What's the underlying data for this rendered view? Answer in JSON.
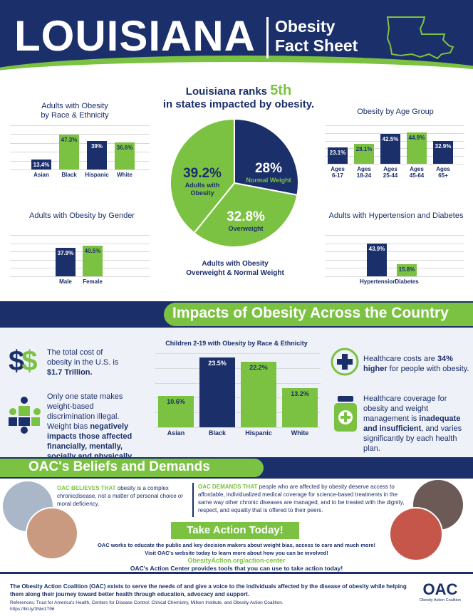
{
  "header": {
    "title": "LOUISIANA",
    "subtitle_line1": "Obesity",
    "subtitle_line2": "Fact Sheet"
  },
  "rank": {
    "prefix": "Louisiana ranks",
    "rank": "5th",
    "suffix": "in states impacted by obesity."
  },
  "race_chart": {
    "title_line1": "Adults with Obesity",
    "title_line2": "by Race & Ethnicity"
  },
  "age_chart": {
    "title": "Obesity by Age Group"
  },
  "gender_chart": {
    "title": "Adults with Obesity by Gender"
  },
  "hypertension_chart": {
    "title": "Adults with Hypertension and Diabetes"
  },
  "pie": {
    "slice_obesity_value": "39.2%",
    "slice_obesity_label_1": "Adults with",
    "slice_obesity_label_2": "Obesity",
    "slice_normal_value": "28%",
    "slice_normal_label": "Normal Weight",
    "slice_over_value": "32.8%",
    "slice_over_label": "Overweight",
    "caption_1": "Adults with Obesity",
    "caption_2": "Overweight & Normal Weight"
  },
  "chart_data": [
    {
      "type": "bar",
      "title": "Adults with Obesity by Race & Ethnicity",
      "categories": [
        "Asian",
        "Black",
        "Hispanic",
        "White"
      ],
      "values": [
        13.4,
        47.3,
        39,
        36.6
      ],
      "value_labels": [
        "13.4%",
        "47.3%",
        "39%",
        "36.6%"
      ],
      "colors": [
        "#1b2f6b",
        "#7cc242",
        "#1b2f6b",
        "#7cc242"
      ],
      "ylim": [
        0,
        60
      ]
    },
    {
      "type": "bar",
      "title": "Obesity by Age Group",
      "categories": [
        "Ages 6-17",
        "Ages 18-24",
        "Ages 25-44",
        "Ages 45-64",
        "Ages 65+"
      ],
      "values": [
        23.1,
        28.1,
        42.5,
        44.9,
        32.9
      ],
      "value_labels": [
        "23.1%",
        "28.1%",
        "42.5%",
        "44.9%",
        "32.9%"
      ],
      "colors": [
        "#1b2f6b",
        "#7cc242",
        "#1b2f6b",
        "#7cc242",
        "#1b2f6b"
      ],
      "ylim": [
        0,
        55
      ]
    },
    {
      "type": "pie",
      "title": "Adults with Obesity Overweight & Normal Weight",
      "categories": [
        "Normal Weight",
        "Overweight",
        "Adults with Obesity"
      ],
      "values": [
        28,
        32.8,
        39.2
      ],
      "colors": [
        "#1b2f6b",
        "#7cc242",
        "#7cc242"
      ]
    },
    {
      "type": "bar",
      "title": "Adults with Obesity by Gender",
      "categories": [
        "Male",
        "Female"
      ],
      "values": [
        37.9,
        40.5
      ],
      "value_labels": [
        "37.9%",
        "40.5%"
      ],
      "colors": [
        "#1b2f6b",
        "#7cc242"
      ],
      "ylim": [
        0,
        55
      ]
    },
    {
      "type": "bar",
      "title": "Adults with Hypertension and Diabetes",
      "categories": [
        "Hypertension",
        "Diabetes"
      ],
      "values": [
        43.9,
        15.8
      ],
      "value_labels": [
        "43.9%",
        "15.8%"
      ],
      "colors": [
        "#1b2f6b",
        "#7cc242"
      ],
      "ylim": [
        0,
        55
      ]
    },
    {
      "type": "bar",
      "title": "Children 2-19 with Obesity by Race & Ethnicity",
      "categories": [
        "Asian",
        "Black",
        "Hispanic",
        "White"
      ],
      "values": [
        10.6,
        23.5,
        22.2,
        13.2
      ],
      "value_labels": [
        "10.6%",
        "23.5%",
        "22.2%",
        "13.2%"
      ],
      "colors": [
        "#7cc242",
        "#1b2f6b",
        "#7cc242",
        "#7cc242"
      ],
      "ylim": [
        0,
        25
      ]
    }
  ],
  "impacts": {
    "band_title": "Impacts of Obesity Across the Country",
    "children_chart_title": "Children 2-19 with Obesity by Race & Ethnicity",
    "cost_text_1": "The total cost of obesity in the U.S. is ",
    "cost_text_bold": "$1.7 Trillion.",
    "weight_bias_text_1": "Only one state makes weight-based discrimination illegal. Weight bias ",
    "weight_bias_bold": "negatively impacts those affected financially, mentally, socially and physically.",
    "healthcare_cost_1": "Healthcare costs are ",
    "healthcare_cost_bold": "34% higher",
    "healthcare_cost_2": " for people with obesity.",
    "coverage_1": "Healthcare coverage for obesity and weight management is ",
    "coverage_bold": "inadequate and insufficient",
    "coverage_2": ", and varies significantly by each health plan."
  },
  "beliefs": {
    "title": "OAC's Beliefs and Demands",
    "believes_bold": "OAC BELIEVES THAT",
    "believes_text": " obesity is a complex chronicdisease, not a matter of personal choice or moral deficiency.",
    "demands_bold": "OAC DEMANDS THAT",
    "demands_text": " people who are affected by obesity deserve access to affordable, individualized medical coverage for science-based treatments in the same way other chronic diseases are managed, and to be treated with the dignity, respect, and equality that is offered to their peers.",
    "take_action": "Take Action Today!",
    "action_line_1": "OAC works to educate the public and key decision makers about weight bias, access to care and much more!",
    "action_line_2": "Visit OAC's website today to learn more about how you can be involved!",
    "action_link": "ObesityAction.org/action-center",
    "action_line_3": "OAC's Action Center provides tools that you can use to take action today!"
  },
  "footer": {
    "mission": "The Obesity Action Coalition (OAC) exists to serve the needs of and give a voice to the individuals affected by the disease of obesity while helping them along their journey toward better health through education, advocacy and support.",
    "references": "References: Trust for America's Health, Centers for Disease Control, Clinical Chemistry, Milken Institute, and Obesity Action Coalition.",
    "ref_link": "https://bit.ly/3Nw1T96",
    "logo_text": "OAC",
    "logo_sub": "Obesity Action Coalition"
  },
  "icons": [
    "dollar-icon",
    "puzzle-people-icon",
    "medical-cross-icon",
    "medicine-bottle-icon",
    "louisiana-map-icon"
  ]
}
